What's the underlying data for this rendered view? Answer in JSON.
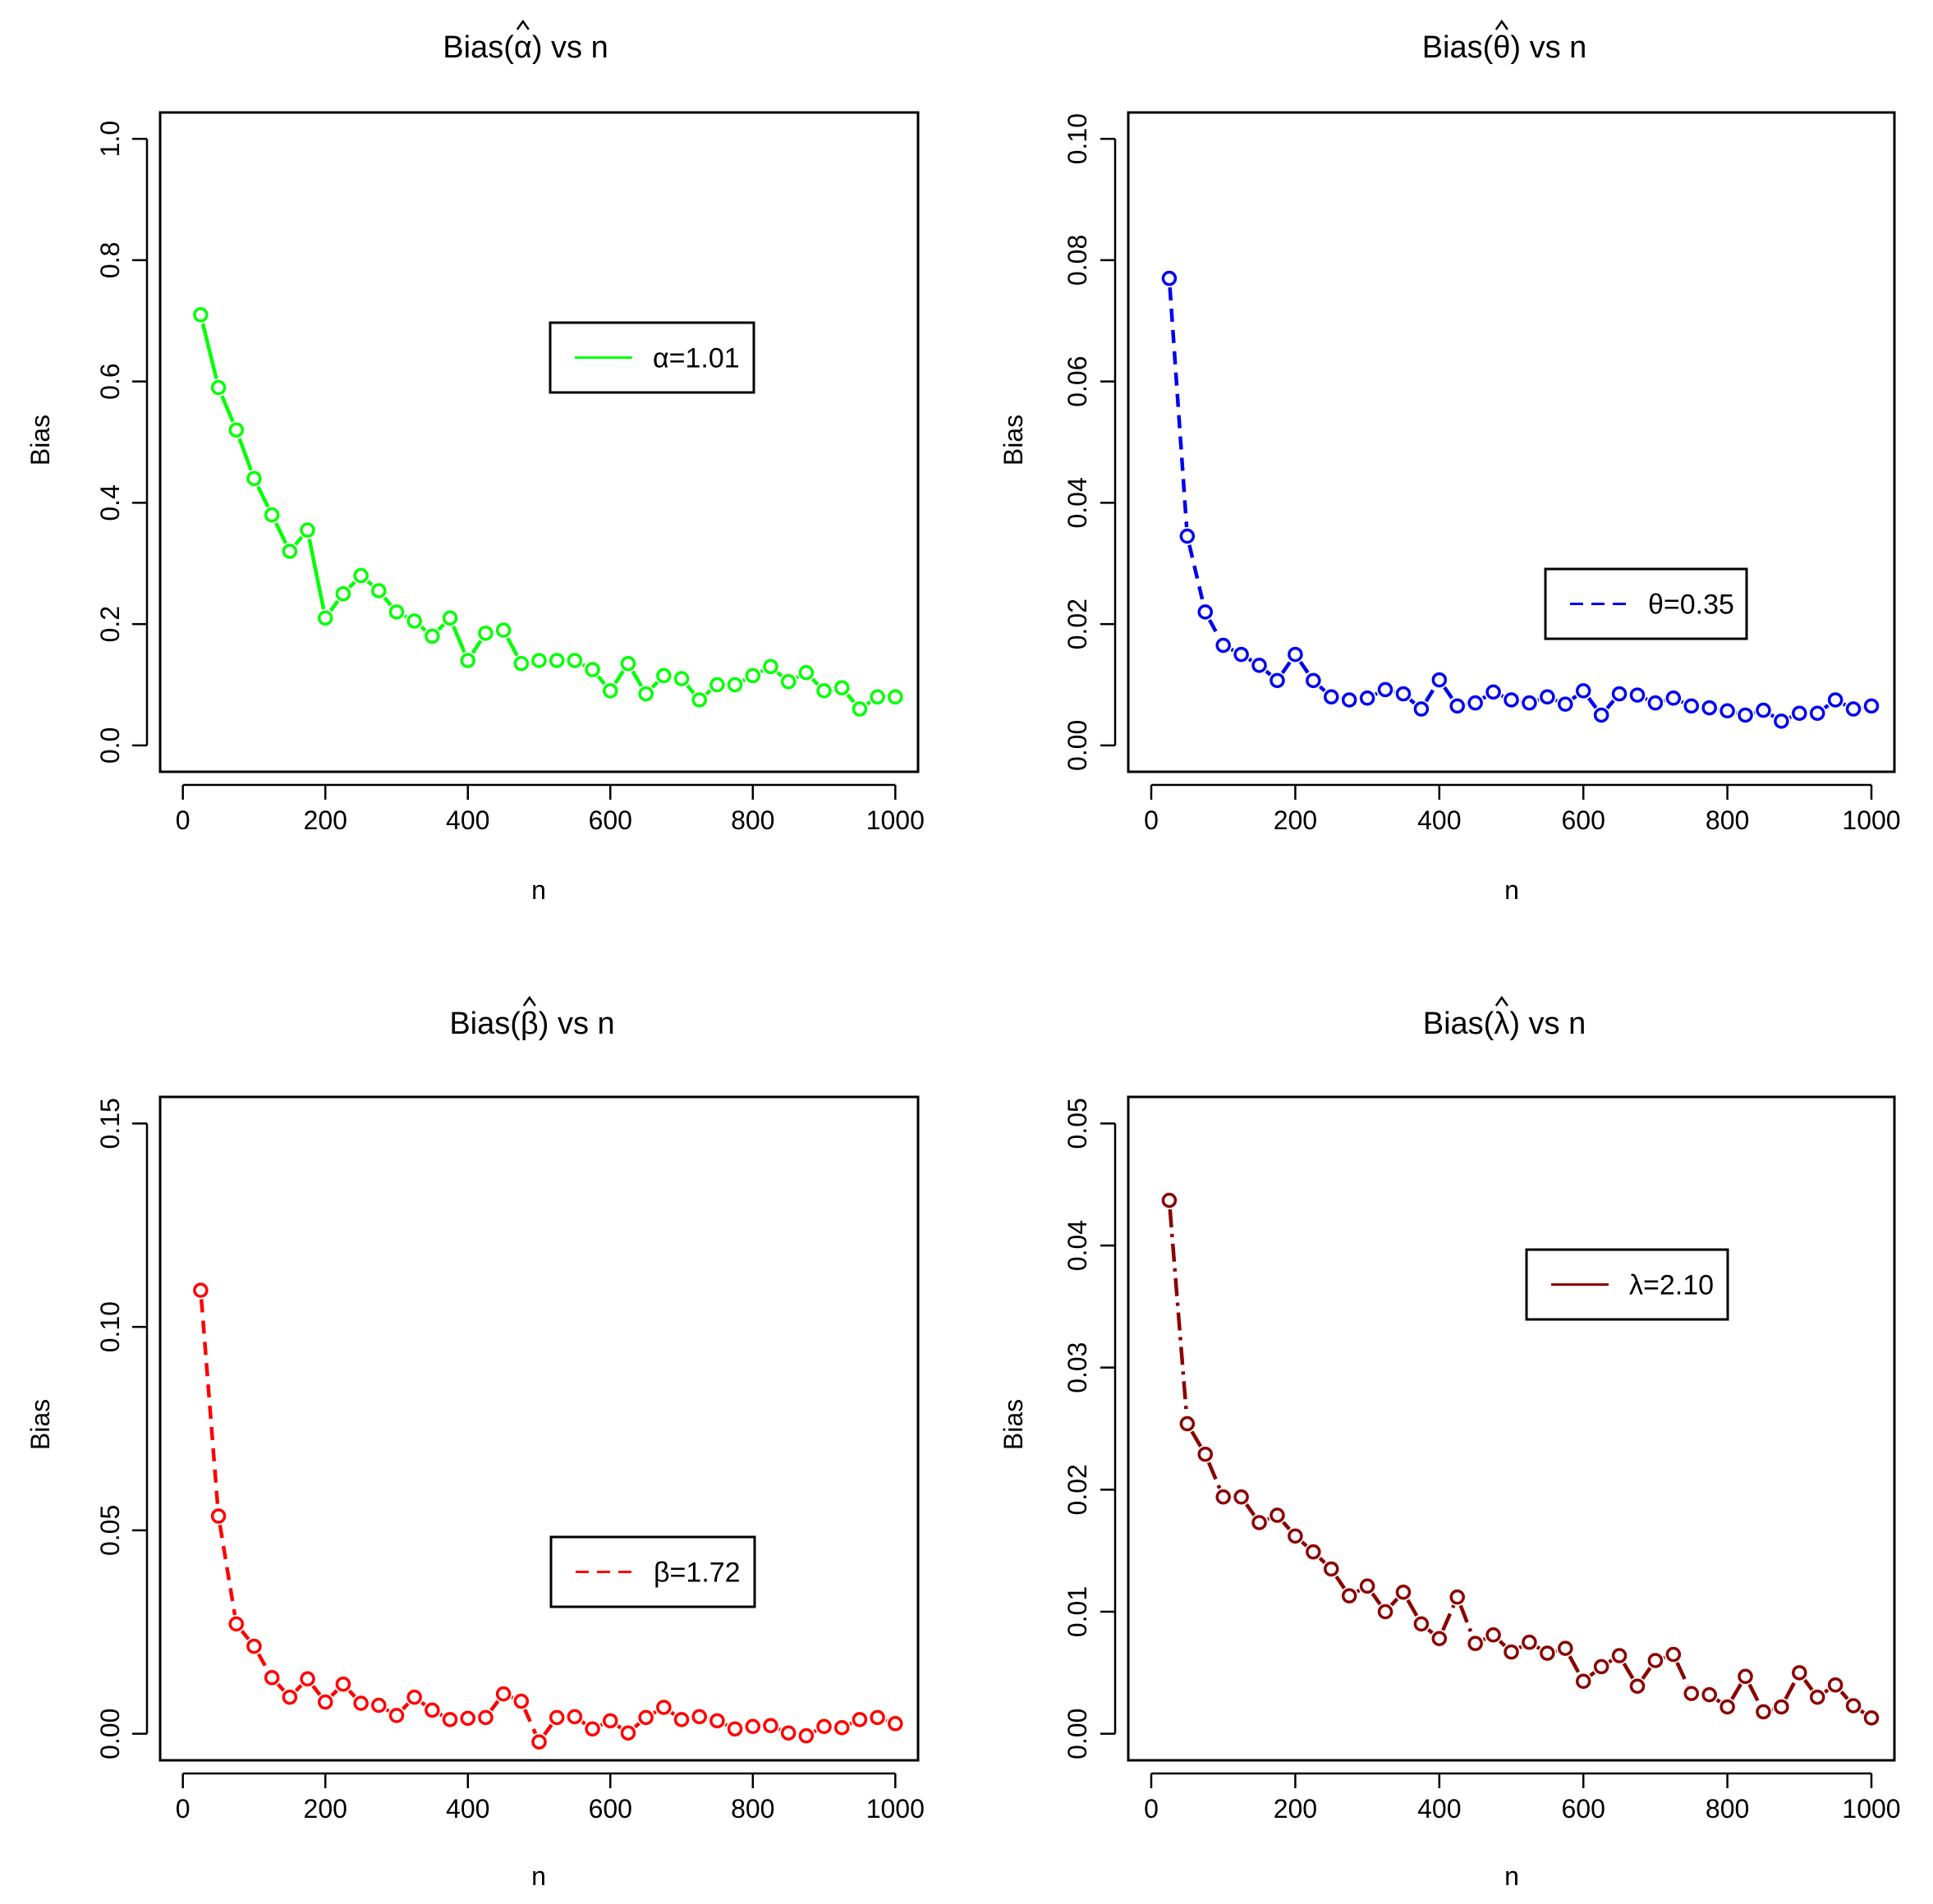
{
  "chart_data": [
    {
      "type": "line",
      "title_prefix": "Bias(",
      "title_symbol": "α",
      "title_suffix": ") vs n",
      "xlabel": "n",
      "ylabel": "Bias",
      "xlim": [
        0,
        1000
      ],
      "ylim": [
        0,
        1.0
      ],
      "xticks": [
        "0",
        "200",
        "400",
        "600",
        "800",
        "1000"
      ],
      "yticks": [
        "0.0",
        "0.2",
        "0.4",
        "0.6",
        "0.8",
        "1.0"
      ],
      "color": "#00ff00",
      "line_style": "solid",
      "legend": "α=1.01",
      "legend_position": "upper-center",
      "series": [
        {
          "name": "α=1.01",
          "x": [
            25,
            50,
            75,
            100,
            125,
            150,
            175,
            200,
            225,
            250,
            275,
            300,
            325,
            350,
            375,
            400,
            425,
            450,
            475,
            500,
            525,
            550,
            575,
            600,
            625,
            650,
            675,
            700,
            725,
            750,
            775,
            800,
            825,
            850,
            875,
            900,
            925,
            950,
            975,
            1000
          ],
          "values": [
            0.71,
            0.59,
            0.52,
            0.44,
            0.38,
            0.32,
            0.355,
            0.21,
            0.25,
            0.28,
            0.255,
            0.22,
            0.205,
            0.18,
            0.21,
            0.14,
            0.185,
            0.19,
            0.135,
            0.14,
            0.14,
            0.14,
            0.125,
            0.09,
            0.135,
            0.085,
            0.115,
            0.11,
            0.075,
            0.1,
            0.1,
            0.115,
            0.13,
            0.105,
            0.12,
            0.09,
            0.095,
            0.06,
            0.08,
            0.08
          ]
        }
      ]
    },
    {
      "type": "line",
      "title_prefix": "Bias(",
      "title_symbol": "θ",
      "title_suffix": ") vs n",
      "xlabel": "n",
      "ylabel": "Bias",
      "xlim": [
        0,
        1000
      ],
      "ylim": [
        0,
        0.1
      ],
      "xticks": [
        "0",
        "200",
        "400",
        "600",
        "800",
        "1000"
      ],
      "yticks": [
        "0.00",
        "0.02",
        "0.04",
        "0.06",
        "0.08",
        "0.10"
      ],
      "color": "#0000ee",
      "line_style": "dashed",
      "legend": "θ=0.35",
      "legend_position": "middle-right",
      "series": [
        {
          "name": "θ=0.35",
          "x": [
            25,
            50,
            75,
            100,
            125,
            150,
            175,
            200,
            225,
            250,
            275,
            300,
            325,
            350,
            375,
            400,
            425,
            450,
            475,
            500,
            525,
            550,
            575,
            600,
            625,
            650,
            675,
            700,
            725,
            750,
            775,
            800,
            825,
            850,
            875,
            900,
            925,
            950,
            975,
            1000
          ],
          "values": [
            0.077,
            0.0345,
            0.022,
            0.0165,
            0.015,
            0.0132,
            0.0107,
            0.015,
            0.0107,
            0.008,
            0.0075,
            0.0078,
            0.0092,
            0.0085,
            0.006,
            0.0108,
            0.0065,
            0.007,
            0.0088,
            0.0075,
            0.007,
            0.008,
            0.0068,
            0.009,
            0.005,
            0.0085,
            0.0083,
            0.007,
            0.0078,
            0.0065,
            0.0062,
            0.0057,
            0.005,
            0.0058,
            0.004,
            0.0053,
            0.0053,
            0.0075,
            0.006,
            0.0065
          ]
        }
      ]
    },
    {
      "type": "line",
      "title_prefix": "Bias(",
      "title_symbol": "β",
      "title_suffix": ") vs n",
      "xlabel": "n",
      "ylabel": "Bias",
      "xlim": [
        0,
        1000
      ],
      "ylim": [
        0,
        0.15
      ],
      "xticks": [
        "0",
        "200",
        "400",
        "600",
        "800",
        "1000"
      ],
      "yticks": [
        "0.00",
        "0.05",
        "0.10",
        "0.15"
      ],
      "color": "#ff0000",
      "line_style": "dashed",
      "legend": "β=1.72",
      "legend_position": "lower-center",
      "series": [
        {
          "name": "β=1.72",
          "x": [
            25,
            50,
            75,
            100,
            125,
            150,
            175,
            200,
            225,
            250,
            275,
            300,
            325,
            350,
            375,
            400,
            425,
            450,
            475,
            500,
            525,
            550,
            575,
            600,
            625,
            650,
            675,
            700,
            725,
            750,
            775,
            800,
            825,
            850,
            875,
            900,
            925,
            950,
            975,
            1000
          ],
          "values": [
            0.109,
            0.0535,
            0.027,
            0.0215,
            0.0138,
            0.009,
            0.0135,
            0.0078,
            0.0122,
            0.0075,
            0.007,
            0.0045,
            0.009,
            0.0058,
            0.0035,
            0.0038,
            0.004,
            0.0098,
            0.008,
            -0.002,
            0.004,
            0.0042,
            0.0012,
            0.0032,
            0.0002,
            0.004,
            0.0065,
            0.0035,
            0.0042,
            0.0032,
            0.0012,
            0.0018,
            0.002,
            0.0002,
            -0.0005,
            0.0018,
            0.0015,
            0.0035,
            0.004,
            0.0025
          ]
        }
      ]
    },
    {
      "type": "line",
      "title_prefix": "Bias(",
      "title_symbol": "λ",
      "title_suffix": ") vs n",
      "xlabel": "n",
      "ylabel": "Bias",
      "xlim": [
        0,
        1000
      ],
      "ylim": [
        0,
        0.05
      ],
      "xticks": [
        "0",
        "200",
        "400",
        "600",
        "800",
        "1000"
      ],
      "yticks": [
        "0.00",
        "0.01",
        "0.02",
        "0.03",
        "0.04",
        "0.05"
      ],
      "color": "#8b0000",
      "line_style": "dashdot",
      "legend": "λ=2.10",
      "legend_position": "upper-center",
      "series": [
        {
          "name": "λ=2.10",
          "x": [
            25,
            50,
            75,
            100,
            125,
            150,
            175,
            200,
            225,
            250,
            275,
            300,
            325,
            350,
            375,
            400,
            425,
            450,
            475,
            500,
            525,
            550,
            575,
            600,
            625,
            650,
            675,
            700,
            725,
            750,
            775,
            800,
            825,
            850,
            875,
            900,
            925,
            950,
            975,
            1000
          ],
          "values": [
            0.0437,
            0.0254,
            0.0229,
            0.0194,
            0.0194,
            0.0173,
            0.0179,
            0.0162,
            0.0149,
            0.0135,
            0.0113,
            0.0121,
            0.01,
            0.0116,
            0.009,
            0.0078,
            0.0112,
            0.0074,
            0.0081,
            0.0067,
            0.0075,
            0.0066,
            0.007,
            0.0043,
            0.0055,
            0.0064,
            0.0039,
            0.006,
            0.0065,
            0.0033,
            0.0032,
            0.0022,
            0.0047,
            0.0018,
            0.0022,
            0.005,
            0.003,
            0.004,
            0.0023,
            0.0013
          ]
        }
      ]
    }
  ]
}
